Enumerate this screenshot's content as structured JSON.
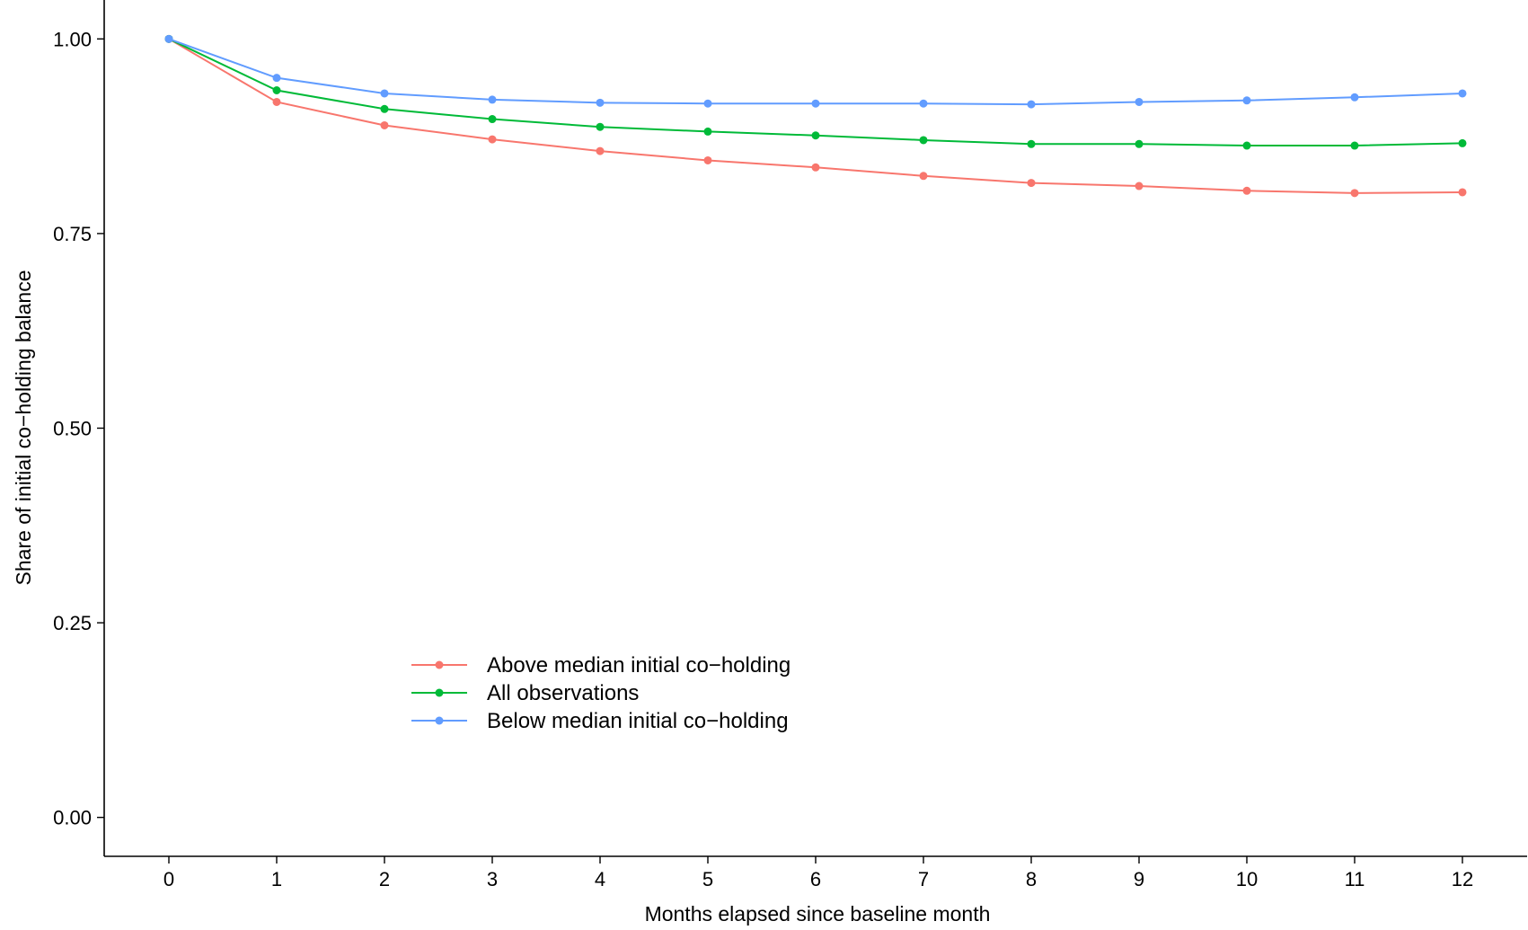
{
  "chart_data": {
    "type": "line",
    "title": "",
    "xlabel": "Months elapsed since baseline month",
    "ylabel": "Share of initial co−holding balance",
    "xlim": [
      -0.6,
      12.6
    ],
    "ylim": [
      -0.05,
      1.05
    ],
    "xticks": [
      0,
      1,
      2,
      3,
      4,
      5,
      6,
      7,
      8,
      9,
      10,
      11,
      12
    ],
    "yticks": [
      0,
      0.25,
      0.5,
      0.75,
      1
    ],
    "ytick_labels": [
      "0.00",
      "0.25",
      "0.50",
      "0.75",
      "1.00"
    ],
    "grid": false,
    "legend_position": "bottom-left",
    "x": [
      0,
      1,
      2,
      3,
      4,
      5,
      6,
      7,
      8,
      9,
      10,
      11,
      12
    ],
    "series": [
      {
        "name": "Above median initial co−holding",
        "color": "#F8766D",
        "values": [
          1.0,
          0.919,
          0.889,
          0.871,
          0.856,
          0.844,
          0.835,
          0.824,
          0.815,
          0.811,
          0.805,
          0.802,
          0.803
        ]
      },
      {
        "name": "All observations",
        "color": "#00BA38",
        "values": [
          1.0,
          0.934,
          0.91,
          0.897,
          0.887,
          0.881,
          0.876,
          0.87,
          0.865,
          0.865,
          0.863,
          0.863,
          0.866
        ]
      },
      {
        "name": "Below median initial co−holding",
        "color": "#619CFF",
        "values": [
          1.0,
          0.95,
          0.93,
          0.922,
          0.918,
          0.917,
          0.917,
          0.917,
          0.916,
          0.919,
          0.921,
          0.925,
          0.93
        ]
      }
    ]
  }
}
